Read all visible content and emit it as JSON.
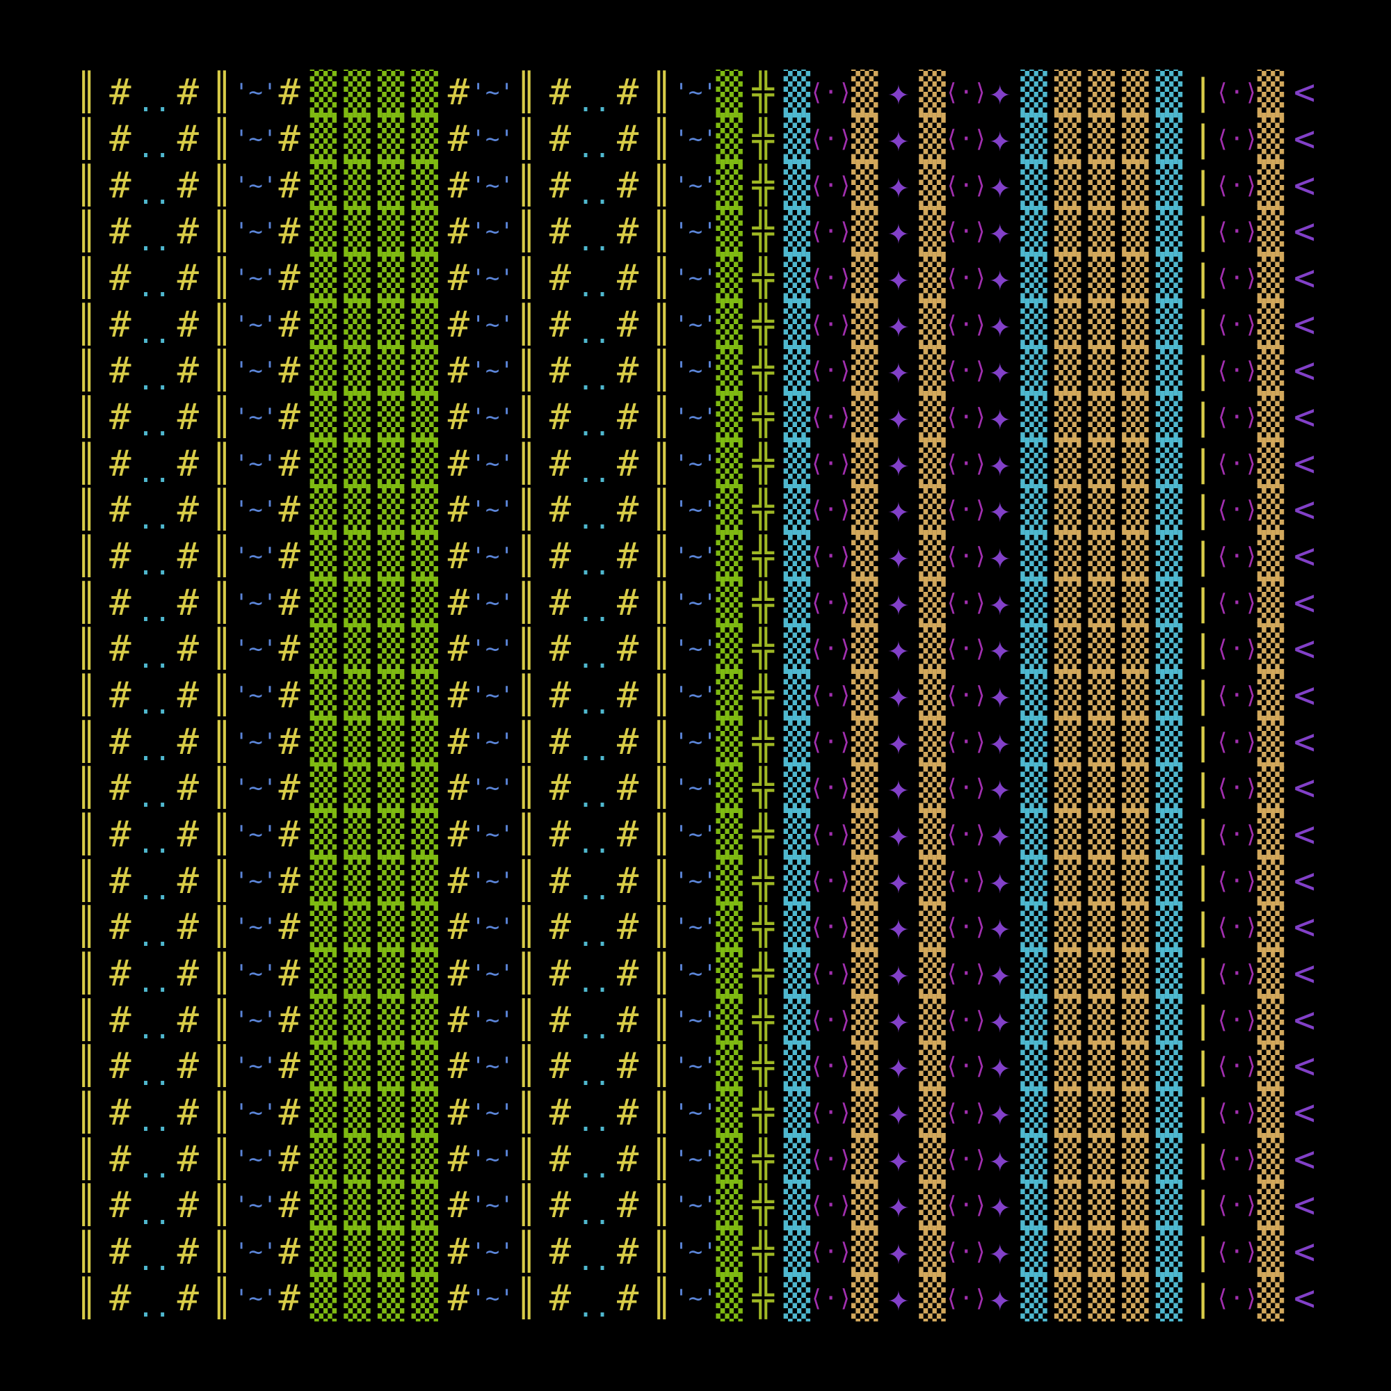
{
  "palette": {
    "yellow": "#d8cc48",
    "cyan": "#4fb8cf",
    "blue": "#5b85d8",
    "green": "#7fba12",
    "tan": "#d2a85c",
    "purple": "#a22fb0",
    "violet": "#8240c8",
    "olive": "#9fb824"
  },
  "glyphs": {
    "bar": "║",
    "pipe": "|",
    "hash": "#",
    "dots": "..",
    "tilde": "'~'",
    "shade": "▒",
    "cross": "╬",
    "angle": "⟨·⟩",
    "star": "✦",
    "lt": "<",
    "bottom": "╩"
  },
  "grid": {
    "rows": 27,
    "columns": [
      {
        "glyph": "bar",
        "color": "yellow"
      },
      {
        "glyph": "hash",
        "color": "yellow"
      },
      {
        "glyph": "dots",
        "color": "cyan"
      },
      {
        "glyph": "hash",
        "color": "yellow"
      },
      {
        "glyph": "bar",
        "color": "yellow"
      },
      {
        "glyph": "tilde",
        "color": "blue"
      },
      {
        "glyph": "hash",
        "color": "yellow"
      },
      {
        "glyph": "shade",
        "color": "green"
      },
      {
        "glyph": "shade",
        "color": "green"
      },
      {
        "glyph": "shade",
        "color": "green"
      },
      {
        "glyph": "shade",
        "color": "green"
      },
      {
        "glyph": "hash",
        "color": "yellow"
      },
      {
        "glyph": "tilde",
        "color": "blue"
      },
      {
        "glyph": "bar",
        "color": "yellow"
      },
      {
        "glyph": "hash",
        "color": "yellow"
      },
      {
        "glyph": "dots",
        "color": "cyan"
      },
      {
        "glyph": "hash",
        "color": "yellow"
      },
      {
        "glyph": "bar",
        "color": "yellow"
      },
      {
        "glyph": "tilde",
        "color": "blue"
      },
      {
        "glyph": "shade",
        "color": "green"
      },
      {
        "glyph": "cross",
        "color": "olive"
      },
      {
        "glyph": "shade",
        "color": "cyan"
      },
      {
        "glyph": "angle",
        "color": "purple"
      },
      {
        "glyph": "shade",
        "color": "tan"
      },
      {
        "glyph": "star",
        "color": "violet"
      },
      {
        "glyph": "shade",
        "color": "tan"
      },
      {
        "glyph": "angle",
        "color": "purple"
      },
      {
        "glyph": "star",
        "color": "violet"
      },
      {
        "glyph": "shade",
        "color": "cyan"
      },
      {
        "glyph": "shade",
        "color": "tan"
      },
      {
        "glyph": "shade",
        "color": "tan"
      },
      {
        "glyph": "shade",
        "color": "tan"
      },
      {
        "glyph": "shade",
        "color": "cyan"
      },
      {
        "glyph": "pipe",
        "color": "yellow"
      },
      {
        "glyph": "angle",
        "color": "purple"
      },
      {
        "glyph": "shade",
        "color": "tan"
      },
      {
        "glyph": "lt",
        "color": "violet"
      }
    ]
  }
}
